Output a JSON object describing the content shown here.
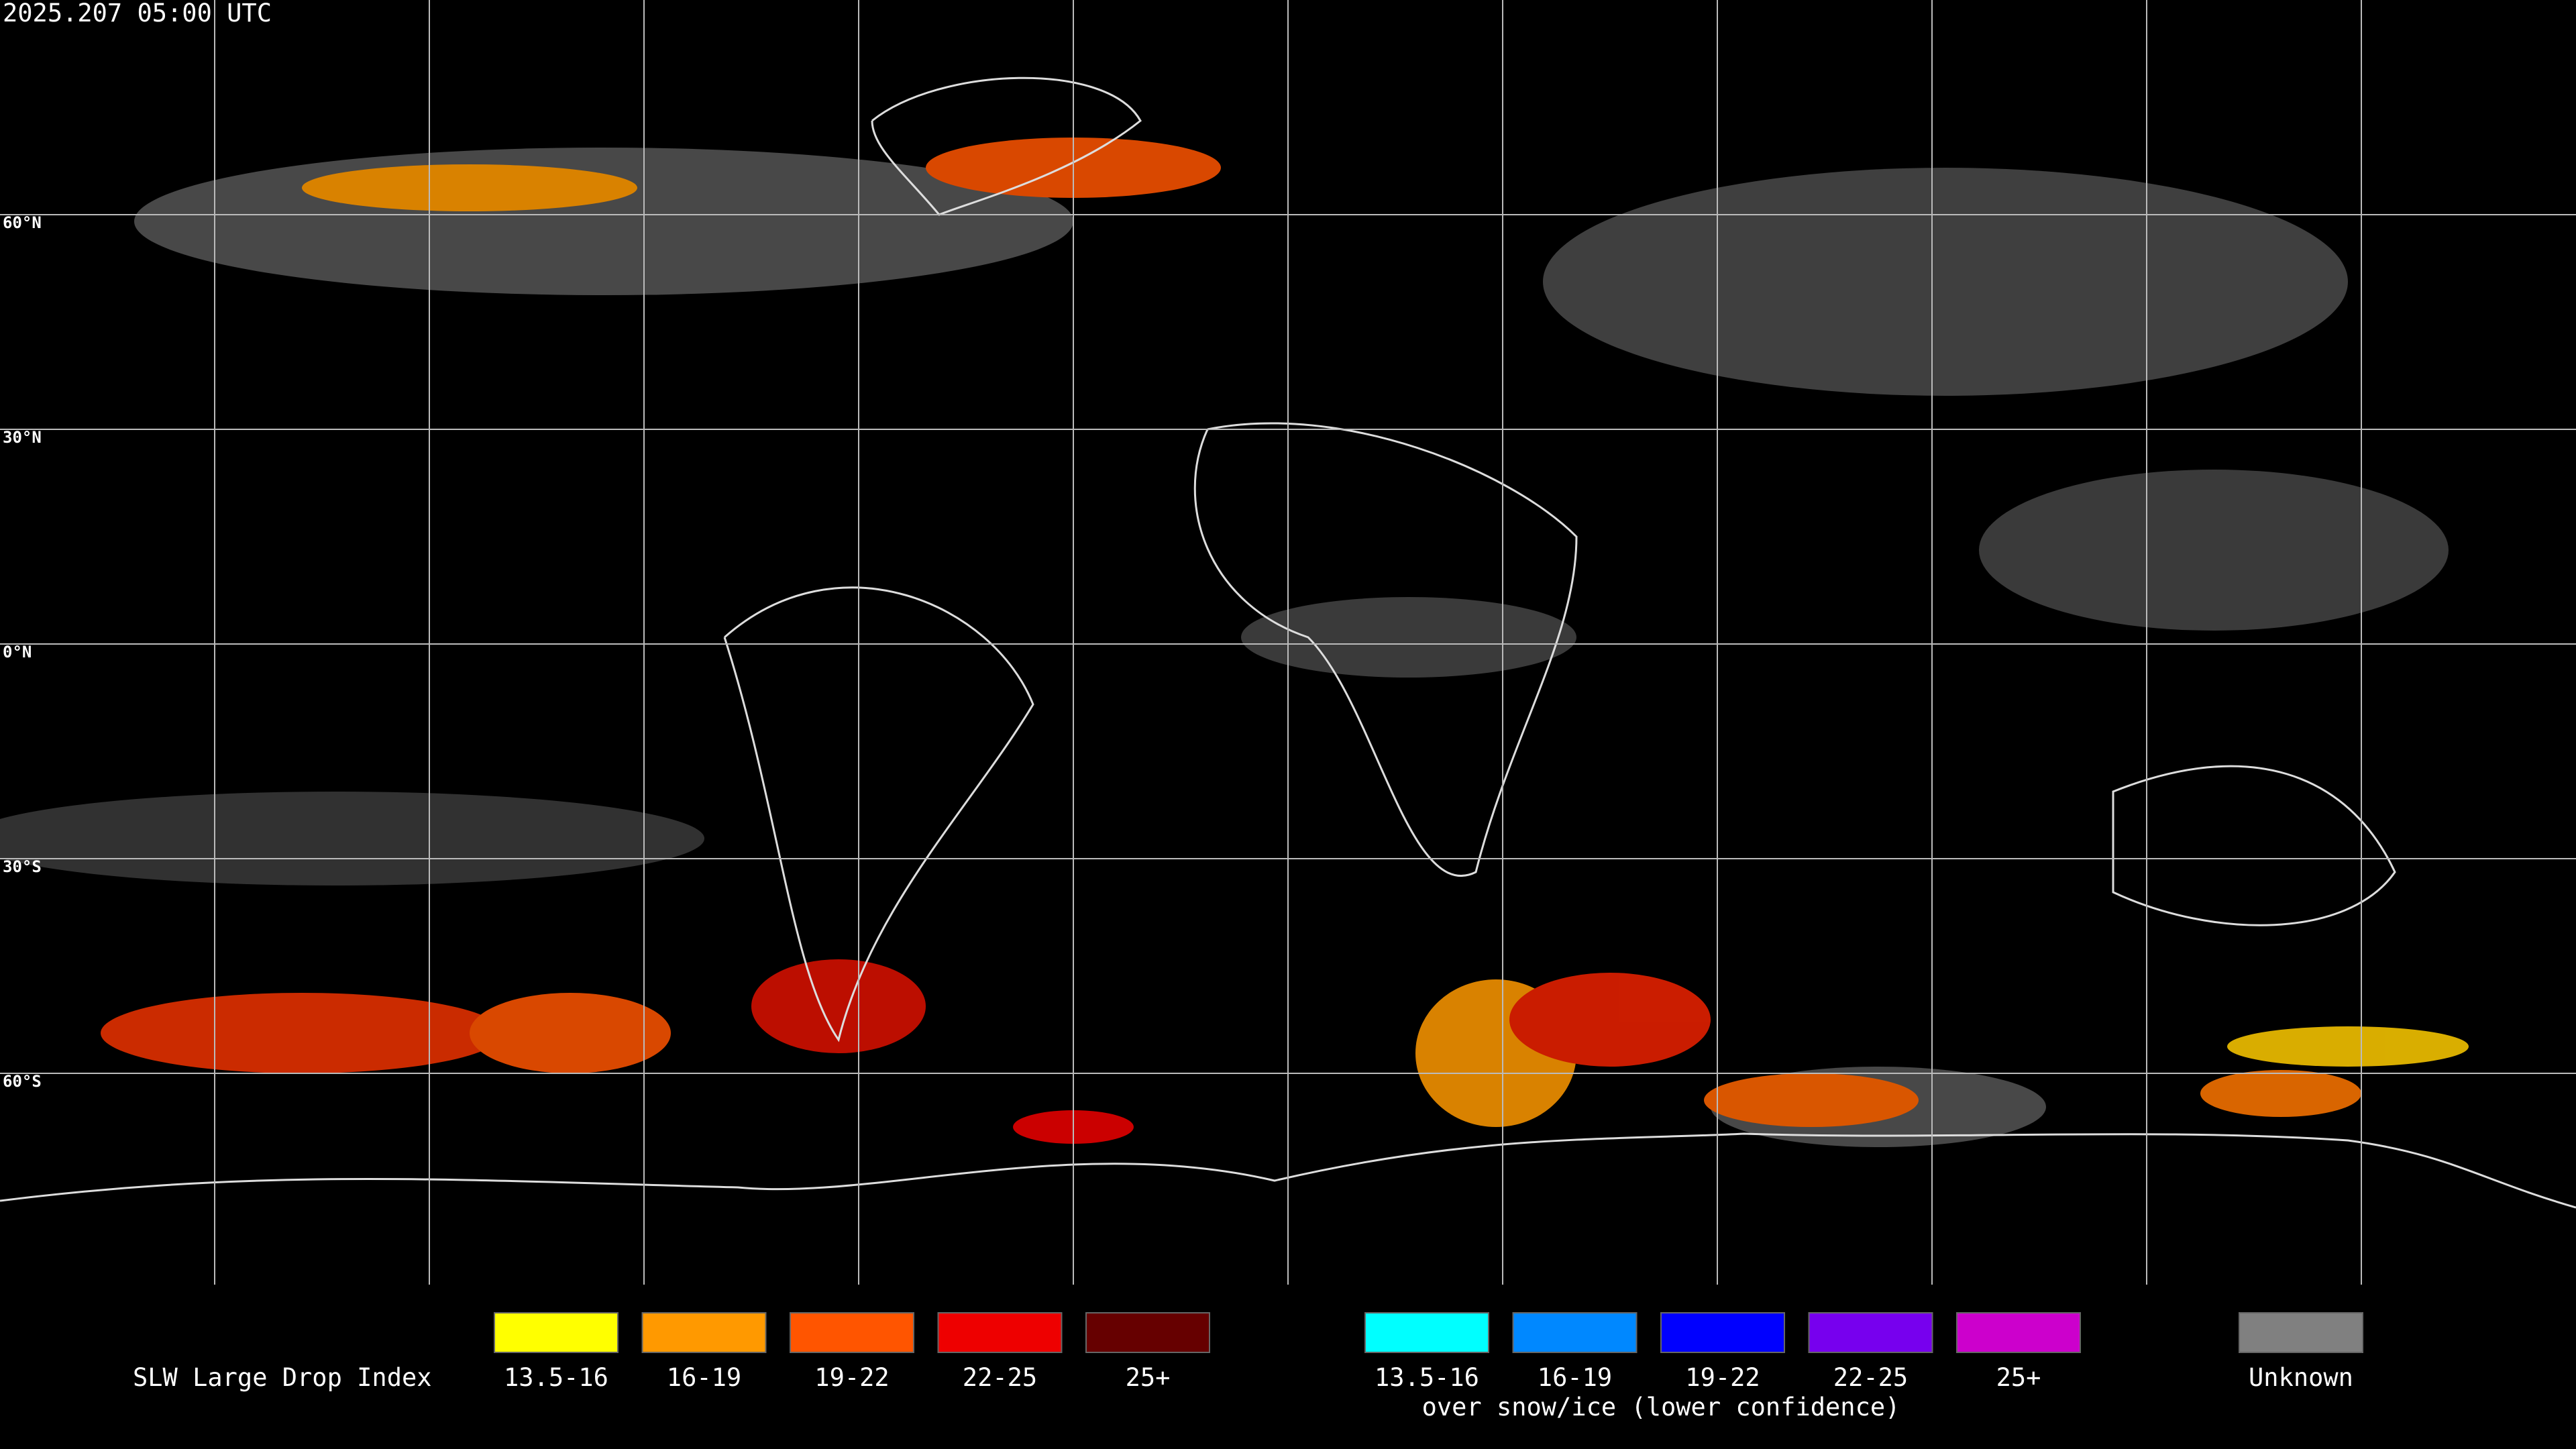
{
  "header": {
    "timestamp": "2025.207 05:00 UTC"
  },
  "map": {
    "lat_labels": [
      "60°N",
      "30°N",
      "0°N",
      "30°S",
      "60°S"
    ]
  },
  "legend": {
    "title": "SLW Large Drop Index",
    "groups": [
      {
        "items": [
          {
            "label": "13.5-16",
            "color": "#ffff00"
          },
          {
            "label": "16-19",
            "color": "#ff9900"
          },
          {
            "label": "19-22",
            "color": "#ff5500"
          },
          {
            "label": "22-25",
            "color": "#ee0000"
          },
          {
            "label": "25+",
            "color": "#660000"
          }
        ]
      },
      {
        "items": [
          {
            "label": "13.5-16",
            "color": "#00ffff"
          },
          {
            "label": "16-19",
            "color": "#0088ff"
          },
          {
            "label": "19-22",
            "color": "#0000ff"
          },
          {
            "label": "22-25",
            "color": "#7700ee"
          },
          {
            "label": "25+",
            "color": "#cc00cc"
          }
        ]
      }
    ],
    "snow_ice_note": "over snow/ice (lower confidence)",
    "unknown": {
      "label": "Unknown",
      "color": "#808080"
    }
  }
}
